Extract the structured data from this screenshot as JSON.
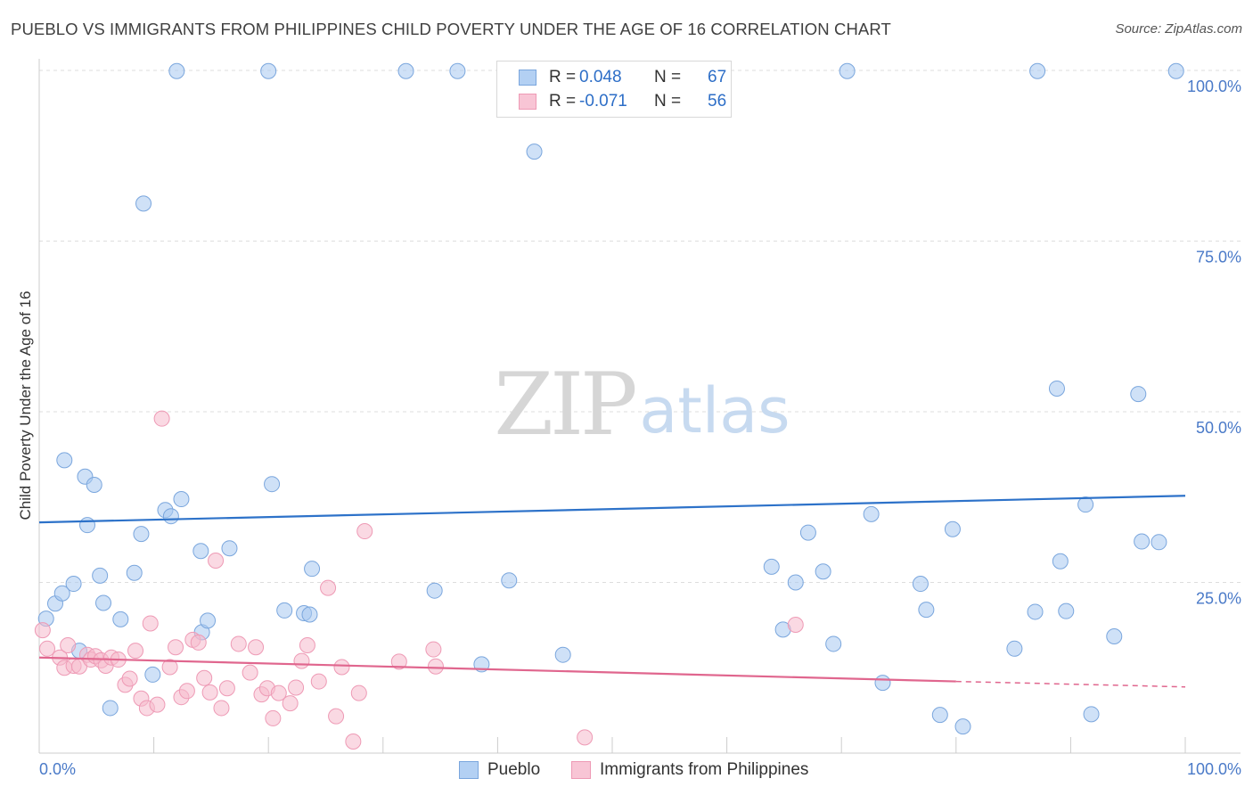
{
  "header": {
    "title": "PUEBLO VS IMMIGRANTS FROM PHILIPPINES CHILD POVERTY UNDER THE AGE OF 16 CORRELATION CHART",
    "source": "Source: ZipAtlas.com"
  },
  "watermark": {
    "zip": "ZIP",
    "atlas": "atlas"
  },
  "legend": {
    "rows": [
      {
        "r_label": "R =",
        "r_value": "0.048",
        "n_label": "N =",
        "n_value": "67"
      },
      {
        "r_label": "R =",
        "r_value": "-0.071",
        "n_label": "N =",
        "n_value": "56"
      }
    ]
  },
  "bottom_legend": {
    "series_a": "Pueblo",
    "series_b": "Immigrants from Philippines"
  },
  "colors": {
    "series_a_fill": "#a8c8f0",
    "series_a_stroke": "#7aa6dd",
    "series_a_line": "#2d72c9",
    "series_b_fill": "#f6b9cc",
    "series_b_stroke": "#ee9ab5",
    "series_b_line": "#e0668e",
    "tick_label": "#4a7ac8",
    "grid": "#dddddd"
  },
  "chart_data": {
    "type": "scatter",
    "title": "PUEBLO VS IMMIGRANTS FROM PHILIPPINES CHILD POVERTY UNDER THE AGE OF 16 CORRELATION CHART",
    "xlabel": "",
    "ylabel": "Child Poverty Under the Age of 16",
    "xlim": [
      0,
      100
    ],
    "ylim": [
      0,
      105
    ],
    "x_tick_labels": [
      "0.0%",
      "100.0%"
    ],
    "y_ticks": [
      25,
      50,
      75,
      100
    ],
    "y_tick_labels": [
      "25.0%",
      "50.0%",
      "75.0%",
      "100.0%"
    ],
    "grid": "horizontal dashed",
    "legend_position": "top-center",
    "series": [
      {
        "name": "Pueblo",
        "r": 0.048,
        "n": 67,
        "trend": {
          "x": [
            0,
            100
          ],
          "y": [
            33.8,
            37.7
          ]
        },
        "points": [
          [
            0.6,
            19.7
          ],
          [
            1.4,
            21.9
          ],
          [
            2.0,
            23.4
          ],
          [
            2.2,
            42.9
          ],
          [
            3.0,
            24.8
          ],
          [
            3.5,
            15.0
          ],
          [
            4.0,
            40.5
          ],
          [
            4.2,
            33.4
          ],
          [
            4.8,
            39.3
          ],
          [
            5.3,
            26.0
          ],
          [
            5.6,
            22.0
          ],
          [
            6.2,
            6.6
          ],
          [
            7.1,
            19.6
          ],
          [
            8.3,
            26.4
          ],
          [
            8.9,
            32.1
          ],
          [
            9.1,
            80.5
          ],
          [
            9.9,
            11.5
          ],
          [
            11.0,
            35.6
          ],
          [
            11.5,
            34.7
          ],
          [
            12.0,
            99.9
          ],
          [
            12.4,
            37.2
          ],
          [
            14.1,
            29.6
          ],
          [
            14.2,
            17.7
          ],
          [
            14.7,
            19.4
          ],
          [
            16.6,
            30.0
          ],
          [
            20.0,
            99.9
          ],
          [
            20.3,
            39.4
          ],
          [
            21.4,
            20.9
          ],
          [
            23.1,
            20.5
          ],
          [
            23.6,
            20.3
          ],
          [
            23.8,
            27.0
          ],
          [
            32.0,
            99.9
          ],
          [
            34.5,
            23.8
          ],
          [
            36.5,
            99.9
          ],
          [
            38.6,
            13.0
          ],
          [
            41.0,
            25.3
          ],
          [
            43.2,
            88.1
          ],
          [
            45.7,
            14.4
          ],
          [
            59.6,
            99.9
          ],
          [
            63.9,
            27.3
          ],
          [
            64.9,
            18.1
          ],
          [
            66.0,
            25.0
          ],
          [
            67.1,
            32.3
          ],
          [
            68.4,
            26.6
          ],
          [
            69.3,
            16.0
          ],
          [
            70.5,
            99.9
          ],
          [
            72.6,
            35.0
          ],
          [
            73.6,
            10.3
          ],
          [
            76.9,
            24.8
          ],
          [
            77.4,
            21.0
          ],
          [
            78.6,
            5.6
          ],
          [
            79.7,
            32.8
          ],
          [
            80.6,
            3.9
          ],
          [
            85.1,
            15.3
          ],
          [
            86.9,
            20.7
          ],
          [
            87.1,
            99.9
          ],
          [
            88.8,
            53.4
          ],
          [
            89.1,
            28.1
          ],
          [
            89.6,
            20.8
          ],
          [
            91.3,
            36.4
          ],
          [
            91.8,
            5.7
          ],
          [
            93.8,
            17.1
          ],
          [
            95.9,
            52.6
          ],
          [
            96.2,
            31.0
          ],
          [
            97.7,
            30.9
          ],
          [
            99.2,
            99.9
          ],
          [
            59.4,
            99.9
          ]
        ]
      },
      {
        "name": "Immigrants from Philippines",
        "r": -0.071,
        "n": 56,
        "trend": {
          "x": [
            0,
            80
          ],
          "y": [
            14.0,
            10.5
          ],
          "dashed_to": {
            "x": 100,
            "y": 9.7
          }
        },
        "points": [
          [
            0.3,
            18.0
          ],
          [
            0.7,
            15.3
          ],
          [
            1.8,
            14.0
          ],
          [
            2.2,
            12.5
          ],
          [
            2.5,
            15.8
          ],
          [
            3.0,
            12.8
          ],
          [
            3.5,
            12.7
          ],
          [
            4.2,
            14.4
          ],
          [
            4.5,
            13.7
          ],
          [
            4.9,
            14.2
          ],
          [
            5.4,
            13.6
          ],
          [
            5.8,
            12.8
          ],
          [
            6.3,
            14.0
          ],
          [
            6.9,
            13.7
          ],
          [
            7.5,
            10.0
          ],
          [
            7.9,
            10.9
          ],
          [
            8.4,
            15.0
          ],
          [
            8.9,
            8.0
          ],
          [
            9.4,
            6.6
          ],
          [
            9.7,
            19.0
          ],
          [
            10.3,
            7.1
          ],
          [
            10.7,
            49.0
          ],
          [
            11.4,
            12.6
          ],
          [
            11.9,
            15.5
          ],
          [
            12.4,
            8.2
          ],
          [
            12.9,
            9.1
          ],
          [
            13.4,
            16.6
          ],
          [
            13.9,
            16.2
          ],
          [
            14.4,
            11.0
          ],
          [
            14.9,
            8.9
          ],
          [
            15.4,
            28.2
          ],
          [
            15.9,
            6.6
          ],
          [
            16.4,
            9.5
          ],
          [
            17.4,
            16.0
          ],
          [
            18.4,
            11.8
          ],
          [
            18.9,
            15.5
          ],
          [
            19.4,
            8.6
          ],
          [
            19.9,
            9.5
          ],
          [
            20.4,
            5.1
          ],
          [
            20.9,
            8.8
          ],
          [
            21.9,
            7.3
          ],
          [
            22.4,
            9.6
          ],
          [
            22.9,
            13.5
          ],
          [
            23.4,
            15.8
          ],
          [
            24.4,
            10.5
          ],
          [
            25.2,
            24.2
          ],
          [
            25.9,
            5.4
          ],
          [
            26.4,
            12.6
          ],
          [
            27.4,
            1.7
          ],
          [
            27.9,
            8.8
          ],
          [
            28.4,
            32.5
          ],
          [
            31.4,
            13.4
          ],
          [
            34.4,
            15.2
          ],
          [
            34.6,
            12.7
          ],
          [
            47.6,
            2.3
          ],
          [
            66.0,
            18.8
          ]
        ]
      }
    ]
  }
}
